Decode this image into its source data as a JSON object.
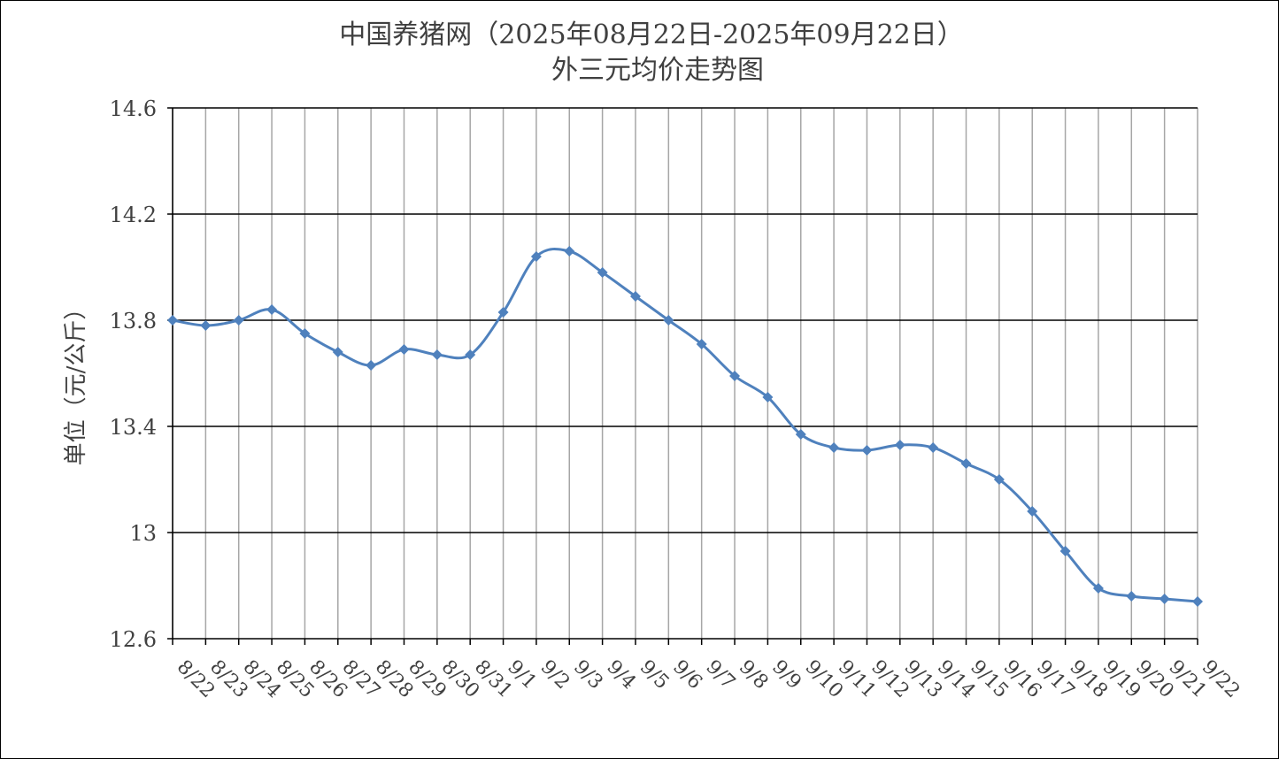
{
  "chart_data": {
    "type": "line",
    "title": "中国养猪网（2025年08月22日-2025年09月22日）",
    "subtitle": "外三元均价走势图",
    "xlabel": "",
    "ylabel": "单位（元/公斤）",
    "ylim": [
      12.6,
      14.6
    ],
    "yticks": [
      "12.6",
      "13",
      "13.4",
      "13.8",
      "14.2",
      "14.6"
    ],
    "ytick_values": [
      12.6,
      13.0,
      13.4,
      13.8,
      14.2,
      14.6
    ],
    "grid": "horizontal and vertical",
    "legend": "none",
    "categories": [
      "8/22",
      "8/23",
      "8/24",
      "8/25",
      "8/26",
      "8/27",
      "8/28",
      "8/29",
      "8/30",
      "8/31",
      "9/1",
      "9/2",
      "9/3",
      "9/4",
      "9/5",
      "9/6",
      "9/7",
      "9/8",
      "9/9",
      "9/10",
      "9/11",
      "9/12",
      "9/13",
      "9/14",
      "9/15",
      "9/16",
      "9/17",
      "9/18",
      "9/19",
      "9/20",
      "9/21",
      "9/22"
    ],
    "series": [
      {
        "name": "",
        "values": [
          13.8,
          13.78,
          13.8,
          13.84,
          13.75,
          13.68,
          13.63,
          13.69,
          13.67,
          13.67,
          13.83,
          14.04,
          14.06,
          13.98,
          13.89,
          13.8,
          13.71,
          13.59,
          13.51,
          13.37,
          13.32,
          13.31,
          13.33,
          13.32,
          13.26,
          13.2,
          13.08,
          12.93,
          12.79,
          12.76,
          12.75,
          12.74
        ],
        "color": "#4F81BD"
      }
    ]
  }
}
